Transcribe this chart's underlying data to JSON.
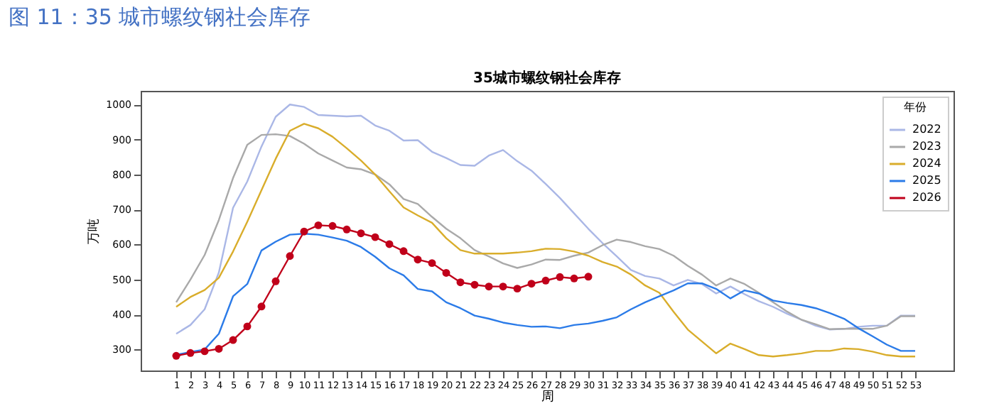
{
  "chart_data": {
    "type": "line",
    "title": "35城市螺纹钢社会库存",
    "xlabel": "周",
    "ylabel": "万吨",
    "legend_title": "年份",
    "legend": "top right",
    "grid": false,
    "annotations": [
      "图 11：35 城市螺纹钢社会库存"
    ],
    "x": [
      1,
      2,
      3,
      4,
      5,
      6,
      7,
      8,
      9,
      10,
      11,
      12,
      13,
      14,
      15,
      16,
      17,
      18,
      19,
      20,
      21,
      22,
      23,
      24,
      25,
      26,
      27,
      28,
      29,
      30,
      31,
      32,
      33,
      34,
      35,
      36,
      37,
      38,
      39,
      40,
      41,
      42,
      43,
      44,
      45,
      46,
      47,
      48,
      49,
      50,
      51,
      52,
      53
    ],
    "xlim": [
      -1.5,
      55.7
    ],
    "xticks": [
      1,
      2,
      3,
      4,
      5,
      6,
      7,
      8,
      9,
      10,
      11,
      12,
      13,
      14,
      15,
      16,
      17,
      18,
      19,
      20,
      21,
      22,
      23,
      24,
      25,
      26,
      27,
      28,
      29,
      30,
      31,
      32,
      33,
      34,
      35,
      36,
      37,
      38,
      39,
      40,
      41,
      42,
      43,
      44,
      45,
      46,
      47,
      48,
      49,
      50,
      51,
      52,
      53
    ],
    "ylim": [
      240,
      1039
    ],
    "yticks": [
      300,
      400,
      500,
      600,
      700,
      800,
      900,
      1000
    ],
    "series": [
      {
        "name": "2022",
        "color": "#aab7e6",
        "values": [
          345,
          370,
          415,
          520,
          705,
          780,
          880,
          965,
          1000,
          993,
          970,
          968,
          966,
          968,
          940,
          925,
          897,
          898,
          865,
          847,
          827,
          825,
          854,
          870,
          838,
          811,
          773,
          733,
          689,
          645,
          604,
          566,
          527,
          510,
          503,
          483,
          499,
          487,
          460,
          480,
          458,
          438,
          422,
          402,
          385,
          368,
          357,
          359,
          365,
          368,
          368,
          397,
          397
        ]
      },
      {
        "name": "2023",
        "color": "#a9a9a9",
        "values": [
          435,
          500,
          570,
          670,
          790,
          885,
          913,
          915,
          910,
          888,
          860,
          840,
          820,
          815,
          800,
          772,
          730,
          716,
          679,
          645,
          618,
          584,
          566,
          546,
          533,
          543,
          557,
          556,
          568,
          577,
          598,
          614,
          607,
          595,
          587,
          568,
          539,
          514,
          483,
          503,
          487,
          462,
          435,
          408,
          385,
          372,
          358,
          359,
          359,
          359,
          368,
          395,
          395
        ]
      },
      {
        "name": "2024",
        "color": "#d9ad2b",
        "values": [
          422,
          450,
          470,
          505,
          580,
          665,
          755,
          845,
          925,
          945,
          932,
          908,
          875,
          840,
          800,
          752,
          706,
          683,
          662,
          618,
          584,
          574,
          574,
          574,
          577,
          581,
          588,
          587,
          580,
          568,
          550,
          537,
          514,
          483,
          462,
          408,
          357,
          323,
          289,
          317,
          301,
          284,
          280,
          284,
          289,
          296,
          296,
          303,
          301,
          294,
          284,
          280,
          280
        ]
      },
      {
        "name": "2025",
        "color": "#2b7be8",
        "values": [
          285,
          293,
          300,
          345,
          452,
          487,
          583,
          608,
          628,
          631,
          628,
          620,
          611,
          593,
          565,
          532,
          512,
          473,
          466,
          435,
          418,
          397,
          388,
          377,
          370,
          365,
          366,
          361,
          370,
          374,
          382,
          392,
          415,
          435,
          452,
          469,
          489,
          489,
          473,
          446,
          469,
          460,
          440,
          433,
          427,
          418,
          404,
          388,
          361,
          338,
          314,
          296,
          296
        ]
      },
      {
        "name": "2026",
        "color": "#c0001a",
        "marker": "circle",
        "values": [
          282,
          290,
          295,
          302,
          327,
          366,
          423,
          495,
          567,
          637,
          655,
          653,
          643,
          632,
          621,
          601,
          581,
          557,
          547,
          519,
          492,
          485,
          480,
          480,
          474,
          488,
          497,
          507,
          503,
          508,
          null,
          null,
          null,
          null,
          null,
          null,
          null,
          null,
          null,
          null,
          null,
          null,
          null,
          null,
          null,
          null,
          null,
          null,
          null,
          null,
          null,
          null,
          null
        ]
      }
    ]
  }
}
